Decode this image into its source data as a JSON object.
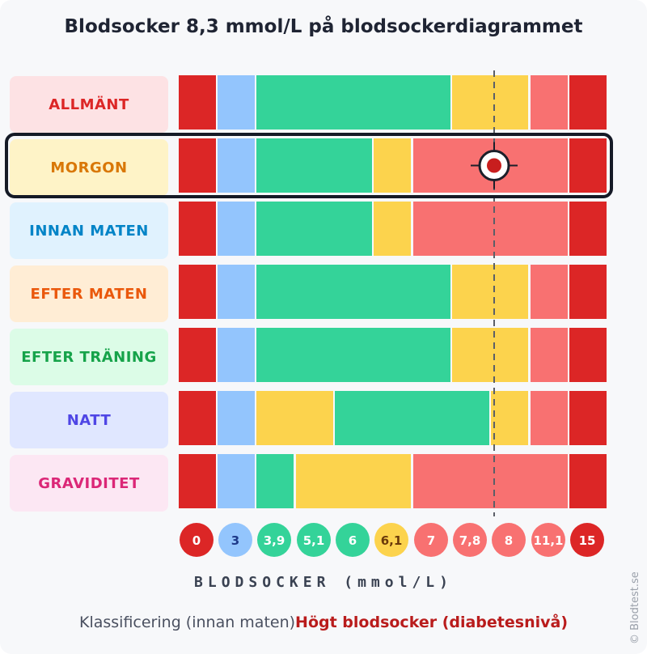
{
  "title": "Blodsocker 8,3 mmol/L på blodsockerdiagrammet",
  "axis_title": "BLODSOCKER (mmol/L)",
  "footer": {
    "label": "Klassificering (innan maten)",
    "value": "Högt blodsocker (diabetesnivå)"
  },
  "copyright": "© Blodtest.se",
  "colors": {
    "very_low": "#dc2626",
    "low": "#93c5fd",
    "normal": "#34d399",
    "elevated": "#fcd34d",
    "high": "#f87171",
    "very_high": "#dc2626"
  },
  "rows": [
    {
      "label": "ALLMÄNT",
      "text_color": "#dc2626",
      "bg": "#fde2e4"
    },
    {
      "label": "MORGON",
      "text_color": "#d97706",
      "bg": "#fef3c7"
    },
    {
      "label": "INNAN MATEN",
      "text_color": "#0284c7",
      "bg": "#e0f2fe"
    },
    {
      "label": "EFTER MATEN",
      "text_color": "#ea580c",
      "bg": "#ffedd5"
    },
    {
      "label": "EFTER TRÄNING",
      "text_color": "#16a34a",
      "bg": "#dcfce7"
    },
    {
      "label": "NATT",
      "text_color": "#4f46e5",
      "bg": "#e0e7ff"
    },
    {
      "label": "GRAVIDITET",
      "text_color": "#db2777",
      "bg": "#fce7f3"
    }
  ],
  "chart_data": {
    "type": "heatmap",
    "title": "Blodsocker 8,3 mmol/L på blodsockerdiagrammet",
    "xlabel": "BLODSOCKER (mmol/L)",
    "ticks": [
      "0",
      "3",
      "3,9",
      "5,1",
      "6",
      "6,1",
      "7",
      "7,8",
      "8",
      "11,1",
      "15"
    ],
    "tick_colors": [
      "very_low",
      "low",
      "normal",
      "normal",
      "normal",
      "elevated",
      "high",
      "high",
      "high",
      "high",
      "very_high"
    ],
    "highlighted_row": 1,
    "marker_value": 8.3,
    "rows": [
      {
        "name": "ALLMÄNT",
        "segments": [
          "very_low",
          "low",
          "normal",
          "normal",
          "normal",
          "normal",
          "normal",
          "elevated",
          "elevated",
          "high",
          "very_high"
        ]
      },
      {
        "name": "MORGON",
        "segments": [
          "very_low",
          "low",
          "normal",
          "normal",
          "normal",
          "elevated",
          "high",
          "high",
          "high",
          "high",
          "very_high"
        ]
      },
      {
        "name": "INNAN MATEN",
        "segments": [
          "very_low",
          "low",
          "normal",
          "normal",
          "normal",
          "elevated",
          "high",
          "high",
          "high",
          "high",
          "very_high"
        ]
      },
      {
        "name": "EFTER MATEN",
        "segments": [
          "very_low",
          "low",
          "normal",
          "normal",
          "normal",
          "normal",
          "normal",
          "elevated",
          "elevated",
          "high",
          "very_high"
        ]
      },
      {
        "name": "EFTER TRÄNING",
        "segments": [
          "very_low",
          "low",
          "normal",
          "normal",
          "normal",
          "normal",
          "normal",
          "elevated",
          "elevated",
          "high",
          "very_high"
        ]
      },
      {
        "name": "NATT",
        "segments": [
          "very_low",
          "low",
          "elevated",
          "elevated",
          "normal",
          "normal",
          "normal",
          "normal",
          "elevated",
          "high",
          "very_high"
        ]
      },
      {
        "name": "GRAVIDITET",
        "segments": [
          "very_low",
          "low",
          "normal",
          "elevated",
          "elevated",
          "elevated",
          "high",
          "high",
          "high",
          "high",
          "very_high"
        ]
      }
    ]
  }
}
